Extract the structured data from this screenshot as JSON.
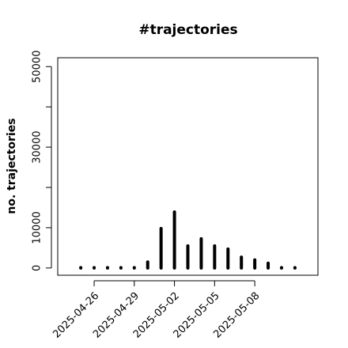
{
  "chart_data": {
    "type": "bar",
    "title": "#trajectories",
    "y_label": "no. trajectories",
    "x": [
      "2025-04-25",
      "2025-04-26",
      "2025-04-27",
      "2025-04-28",
      "2025-04-29",
      "2025-04-30",
      "2025-05-01",
      "2025-05-02",
      "2025-05-03",
      "2025-05-04",
      "2025-05-05",
      "2025-05-06",
      "2025-05-07",
      "2025-05-08",
      "2025-05-09",
      "2025-05-10",
      "2025-05-11"
    ],
    "values": [
      100,
      100,
      100,
      100,
      100,
      1500,
      9800,
      13900,
      5500,
      7250,
      5500,
      4700,
      2700,
      2000,
      1200,
      100,
      100
    ],
    "color": "#000000",
    "xticks": [
      "2025-04-26",
      "2025-04-29",
      "2025-05-02",
      "2025-05-05",
      "2025-05-08"
    ],
    "ylim": [
      -1800,
      52200
    ],
    "yticks": [
      0,
      10000,
      30000,
      50000
    ],
    "yticks_unlabeled": [
      20000,
      40000
    ]
  }
}
